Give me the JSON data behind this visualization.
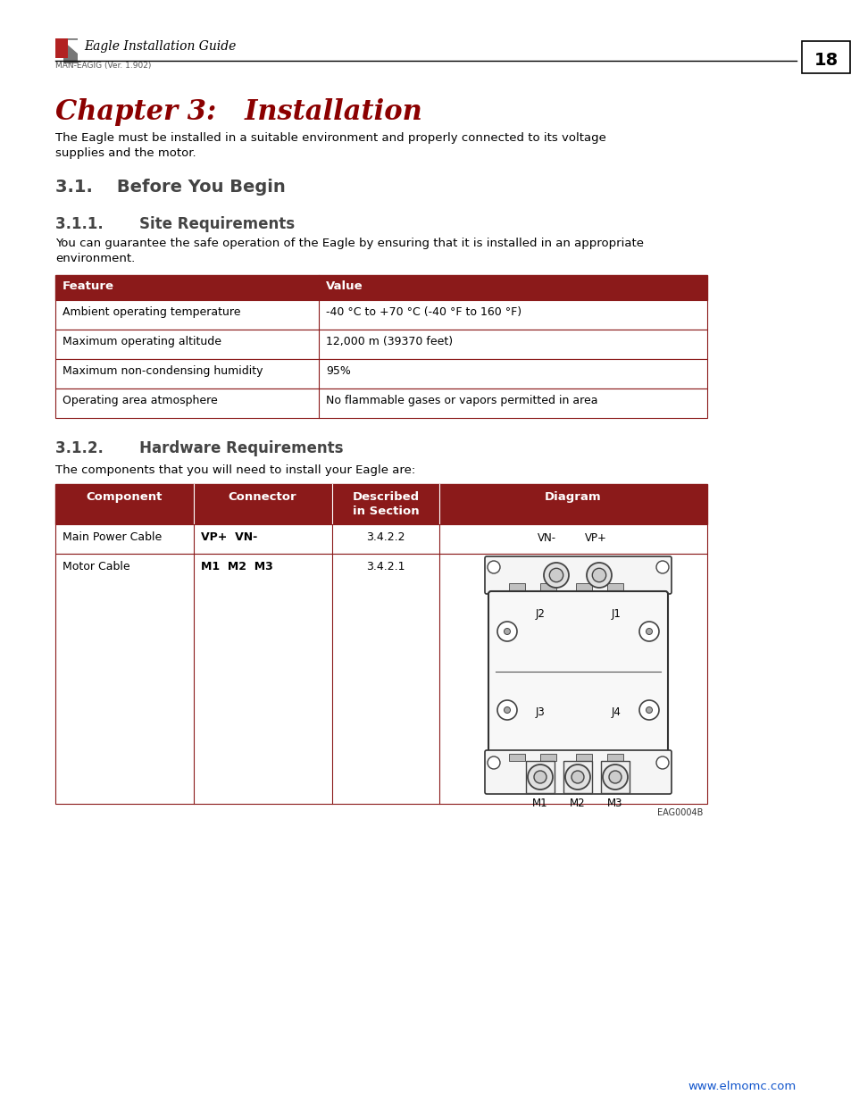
{
  "page_bg": "#ffffff",
  "header_line_color": "#000000",
  "page_number": "18",
  "header_title": "Eagle Installation Guide",
  "header_subtitle": "MAN-EAGIG (Ver. 1.902)",
  "chapter_title": "Chapter 3:   Installation",
  "chapter_title_color": "#8B0000",
  "chapter_intro": "The Eagle must be installed in a suitable environment and properly connected to its voltage\nsupplies and the motor.",
  "section_31": "3.1.    Before You Begin",
  "section_311": "3.1.1.       Site Requirements",
  "section_311_intro": "You can guarantee the safe operation of the Eagle by ensuring that it is installed in an appropriate\nenvironment.",
  "table1_header_bg": "#8B1A1A",
  "table1_header_fg": "#ffffff",
  "table1_headers": [
    "Feature",
    "Value"
  ],
  "table1_rows": [
    [
      "Ambient operating temperature",
      "-40 °C to +70 °C (-40 °F to 160 °F)"
    ],
    [
      "Maximum operating altitude",
      "12,000 m (39370 feet)"
    ],
    [
      "Maximum non-condensing humidity",
      "95%"
    ],
    [
      "Operating area atmosphere",
      "No flammable gases or vapors permitted in area"
    ]
  ],
  "table1_border_color": "#8B1A1A",
  "section_312": "3.1.2.       Hardware Requirements",
  "section_312_intro": "The components that you will need to install your Eagle are:",
  "table2_header_bg": "#8B1A1A",
  "table2_header_fg": "#ffffff",
  "table2_headers": [
    "Component",
    "Connector",
    "Described\nin Section",
    "Diagram"
  ],
  "table2_border_color": "#8B1A1A",
  "footer_url": "www.elmomc.com",
  "footer_url_color": "#1155CC",
  "text_color": "#000000",
  "body_font_size": 9.5,
  "heading1_font_size": 14,
  "heading2_font_size": 12,
  "chapter_font_size": 22
}
